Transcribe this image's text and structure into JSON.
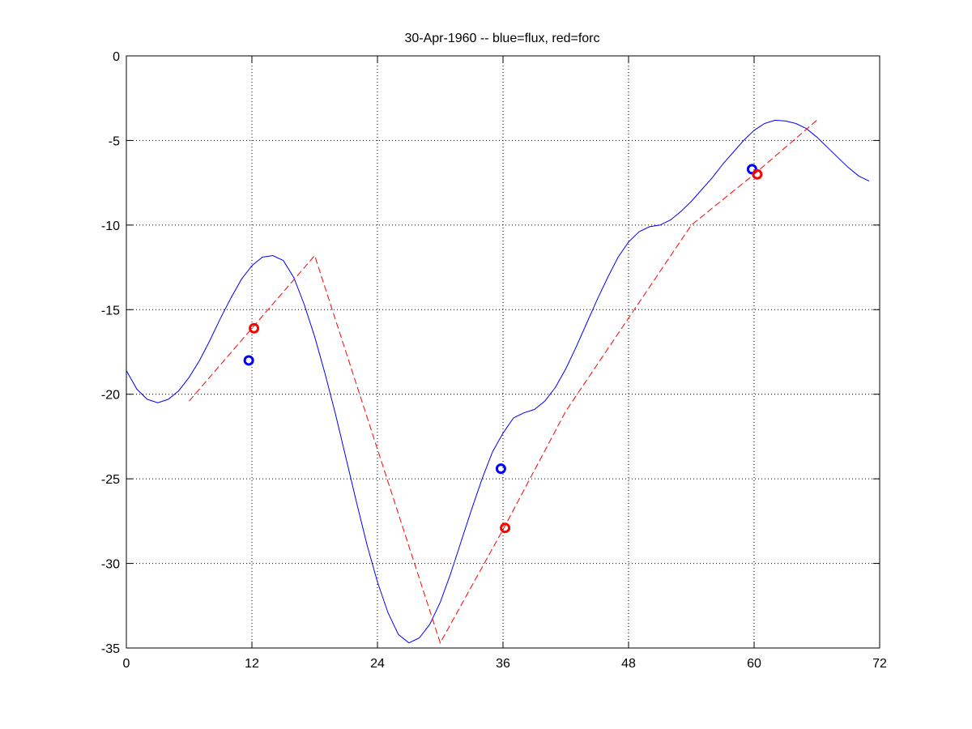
{
  "chart_data": {
    "type": "line",
    "title": "30-Apr-1960 -- blue=flux, red=forc",
    "xlabel": "",
    "ylabel": "",
    "xlim": [
      0,
      72
    ],
    "ylim": [
      -35,
      0
    ],
    "xticks": [
      0,
      12,
      24,
      36,
      48,
      60,
      72
    ],
    "yticks": [
      0,
      -5,
      -10,
      -15,
      -20,
      -25,
      -30,
      -35
    ],
    "xtick_labels": [
      "0",
      "12",
      "24",
      "36",
      "48",
      "60",
      "72"
    ],
    "ytick_labels": [
      "0",
      "-5",
      "-10",
      "-15",
      "-20",
      "-25",
      "-30",
      "-35"
    ],
    "grid": true,
    "series": [
      {
        "color": "#0000ff",
        "style": "solid",
        "x": [
          0,
          1,
          2,
          3,
          4,
          5,
          6,
          7,
          8,
          9,
          10,
          11,
          12,
          13,
          14,
          15,
          16,
          17,
          18,
          19,
          20,
          21,
          22,
          23,
          24,
          25,
          26,
          27,
          28,
          29,
          30,
          31,
          32,
          33,
          34,
          35,
          36,
          37,
          38,
          39,
          40,
          41,
          42,
          43,
          44,
          45,
          46,
          47,
          48,
          49,
          50,
          51,
          52,
          53,
          54,
          55,
          56,
          57,
          58,
          59,
          60,
          61,
          62,
          63,
          64,
          65,
          66,
          67,
          68,
          69,
          70,
          71
        ],
        "y": [
          -18.6,
          -19.7,
          -20.3,
          -20.5,
          -20.3,
          -19.8,
          -19.0,
          -18.0,
          -16.8,
          -15.5,
          -14.3,
          -13.2,
          -12.4,
          -11.9,
          -11.8,
          -12.1,
          -13.1,
          -14.7,
          -16.6,
          -18.8,
          -21.2,
          -23.8,
          -26.4,
          -28.9,
          -31.1,
          -32.9,
          -34.2,
          -34.7,
          -34.4,
          -33.6,
          -32.3,
          -30.6,
          -28.7,
          -26.8,
          -25.0,
          -23.4,
          -22.3,
          -21.4,
          -21.1,
          -20.9,
          -20.4,
          -19.6,
          -18.5,
          -17.2,
          -15.8,
          -14.4,
          -13.1,
          -11.9,
          -11.0,
          -10.4,
          -10.1,
          -10.0,
          -9.7,
          -9.2,
          -8.6,
          -7.9,
          -7.2,
          -6.4,
          -5.7,
          -5.0,
          -4.4,
          -4.0,
          -3.8,
          -3.85,
          -4.0,
          -4.3,
          -4.8,
          -5.4,
          -6.0,
          -6.6,
          -7.1,
          -7.4
        ]
      },
      {
        "color": "#ff0000",
        "style": "dashed",
        "x": [
          6,
          18,
          30,
          36,
          42,
          48,
          54,
          60,
          66
        ],
        "y": [
          -20.4,
          -11.8,
          -34.7,
          -28.0,
          -21.0,
          -15.5,
          -10.0,
          -7.0,
          -3.8
        ]
      }
    ],
    "markers": [
      {
        "color": "#0000ff",
        "x": 11.7,
        "y": -18.0
      },
      {
        "color": "#ff0000",
        "x": 12.2,
        "y": -16.1
      },
      {
        "color": "#0000ff",
        "x": 35.8,
        "y": -24.4
      },
      {
        "color": "#ff0000",
        "x": 36.2,
        "y": -27.9
      },
      {
        "color": "#0000ff",
        "x": 59.8,
        "y": -6.7
      },
      {
        "color": "#ff0000",
        "x": 60.3,
        "y": -7.0
      }
    ]
  }
}
